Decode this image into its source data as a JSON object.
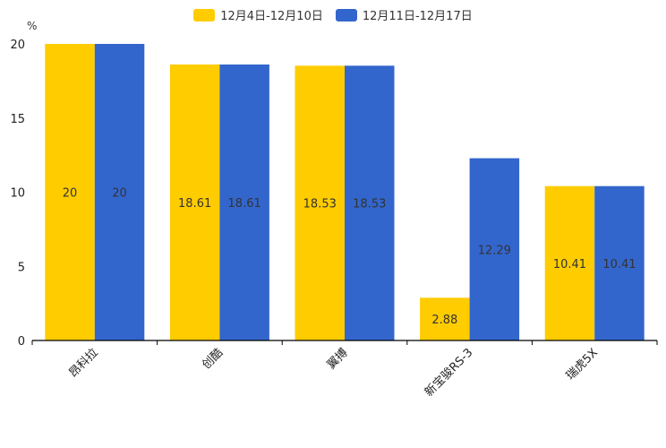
{
  "chart_data": {
    "type": "bar",
    "unit": "%",
    "categories": [
      "昂科拉",
      "创酷",
      "翼搏",
      "新宝骏RS-3",
      "瑞虎5X"
    ],
    "series": [
      {
        "name": "12月4日-12月10日",
        "color": "#ffcc00",
        "values": [
          20,
          18.61,
          18.53,
          2.88,
          10.41
        ]
      },
      {
        "name": "12月11日-12月17日",
        "color": "#3366cc",
        "values": [
          20,
          18.61,
          18.53,
          12.29,
          10.41
        ]
      }
    ],
    "ylim": [
      0,
      20
    ],
    "yticks": [
      0,
      5,
      10,
      15,
      20
    ],
    "legend": "top",
    "grid": false
  }
}
